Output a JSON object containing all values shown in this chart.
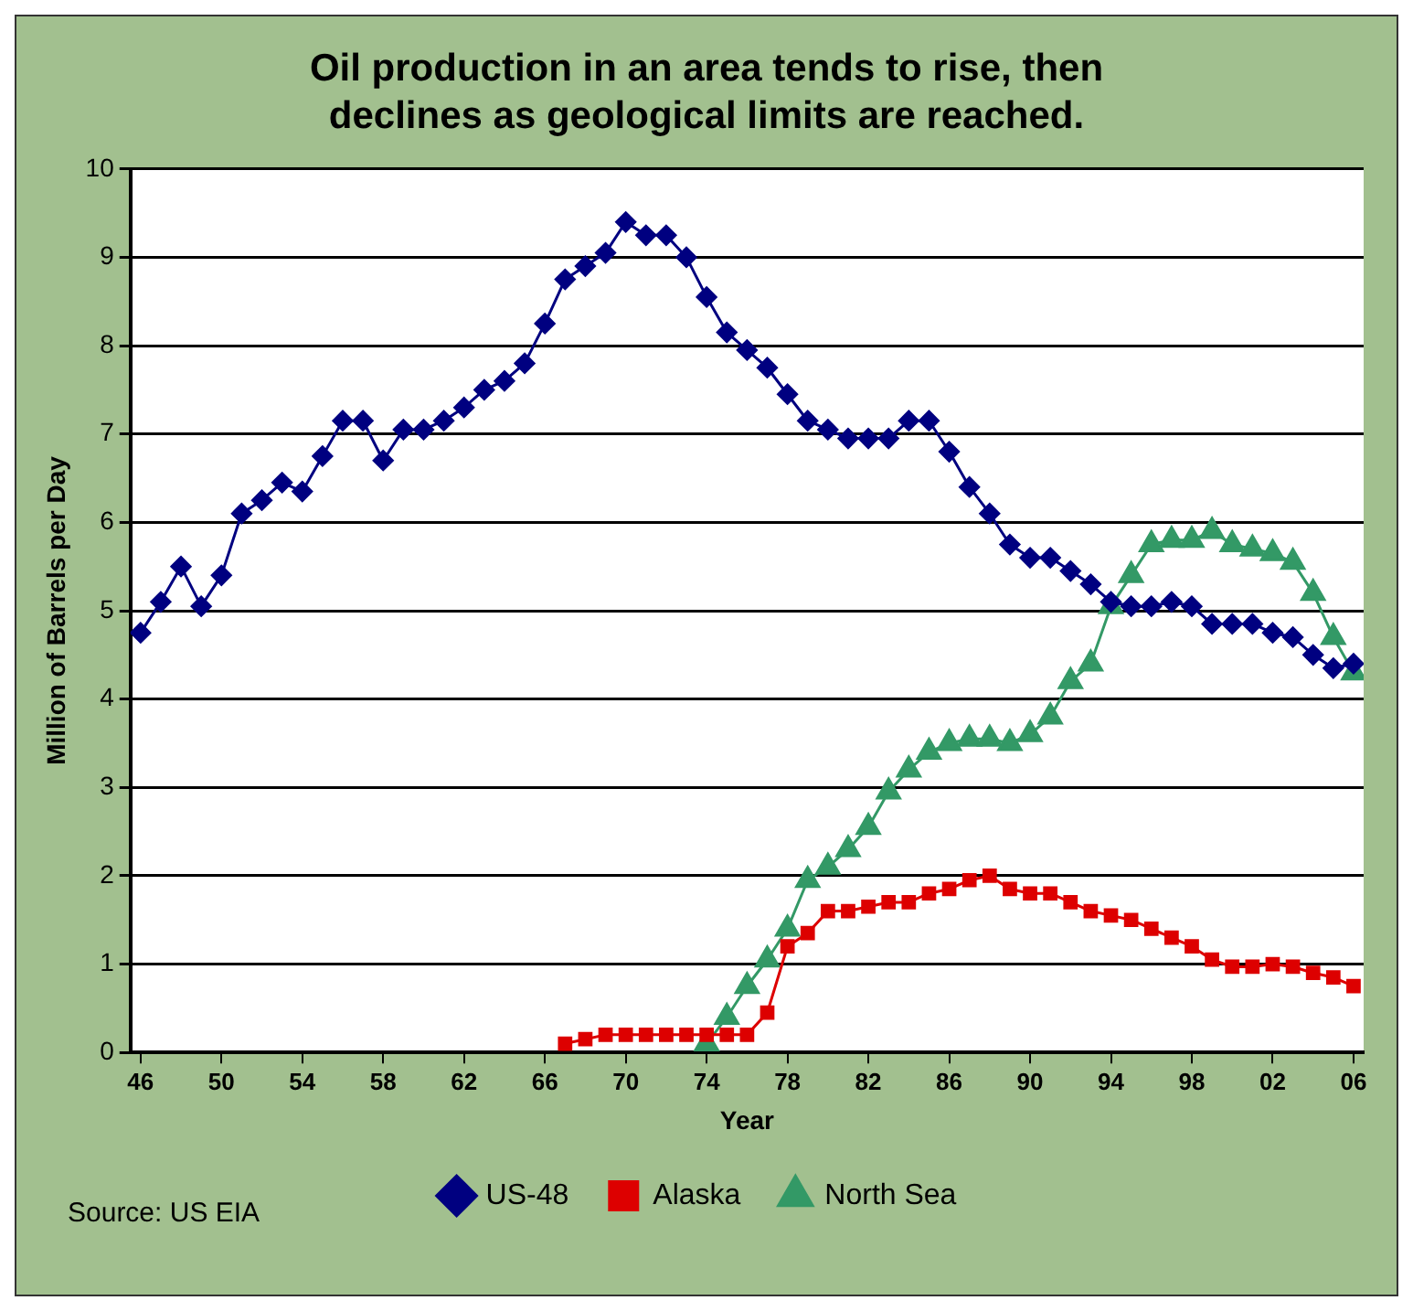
{
  "chart_data": {
    "type": "line",
    "title": "Oil production in an area tends to rise, then declines as geological limits are reached.",
    "xlabel": "Year",
    "ylabel": "Million of Barrels per Day",
    "annotations": [
      "Source: US EIA"
    ],
    "x": [
      1946,
      1947,
      1948,
      1949,
      1950,
      1951,
      1952,
      1953,
      1954,
      1955,
      1956,
      1957,
      1958,
      1959,
      1960,
      1961,
      1962,
      1963,
      1964,
      1965,
      1966,
      1967,
      1968,
      1969,
      1970,
      1971,
      1972,
      1973,
      1974,
      1975,
      1976,
      1977,
      1978,
      1979,
      1980,
      1981,
      1982,
      1983,
      1984,
      1985,
      1986,
      1987,
      1988,
      1989,
      1990,
      1991,
      1992,
      1993,
      1994,
      1995,
      1996,
      1997,
      1998,
      1999,
      2000,
      2001,
      2002,
      2003,
      2004,
      2005,
      2006
    ],
    "series": [
      {
        "name": "US-48",
        "color": "#000080",
        "marker": "diamond",
        "values": [
          4.75,
          5.1,
          5.5,
          5.05,
          5.4,
          6.1,
          6.25,
          6.45,
          6.35,
          6.75,
          7.15,
          7.15,
          6.7,
          7.05,
          7.05,
          7.15,
          7.3,
          7.5,
          7.6,
          7.8,
          8.25,
          8.75,
          8.9,
          9.05,
          9.4,
          9.25,
          9.25,
          9.0,
          8.55,
          8.15,
          7.95,
          7.75,
          7.45,
          7.15,
          7.05,
          6.95,
          6.95,
          6.95,
          7.15,
          7.15,
          6.8,
          6.4,
          6.1,
          5.75,
          5.6,
          5.6,
          5.45,
          5.3,
          5.1,
          5.05,
          5.05,
          5.1,
          5.05,
          4.85,
          4.85,
          4.85,
          4.75,
          4.7,
          4.5,
          4.35,
          4.4
        ]
      },
      {
        "name": "Alaska",
        "color": "#dd0000",
        "marker": "square",
        "values": [
          null,
          null,
          null,
          null,
          null,
          null,
          null,
          null,
          null,
          null,
          null,
          null,
          null,
          null,
          null,
          null,
          null,
          null,
          null,
          null,
          null,
          0.1,
          0.15,
          0.2,
          0.2,
          0.2,
          0.2,
          0.2,
          0.2,
          0.2,
          0.2,
          0.45,
          1.2,
          1.35,
          1.6,
          1.6,
          1.65,
          1.7,
          1.7,
          1.8,
          1.85,
          1.95,
          2.0,
          1.85,
          1.8,
          1.8,
          1.7,
          1.6,
          1.55,
          1.5,
          1.4,
          1.3,
          1.2,
          1.05,
          0.97,
          0.97,
          1.0,
          0.97,
          0.9,
          0.85,
          0.75
        ]
      },
      {
        "name": "North Sea",
        "color": "#339966",
        "marker": "triangle",
        "values": [
          null,
          null,
          null,
          null,
          null,
          null,
          null,
          null,
          null,
          null,
          null,
          null,
          null,
          null,
          null,
          null,
          null,
          null,
          null,
          null,
          null,
          null,
          null,
          null,
          null,
          null,
          null,
          null,
          0.1,
          0.4,
          0.75,
          1.05,
          1.4,
          1.95,
          2.1,
          2.3,
          2.55,
          2.95,
          3.2,
          3.4,
          3.5,
          3.55,
          3.55,
          3.5,
          3.6,
          3.8,
          4.2,
          4.4,
          5.05,
          5.4,
          5.75,
          5.8,
          5.8,
          5.9,
          5.75,
          5.7,
          5.65,
          5.55,
          5.2,
          4.7,
          4.3
        ]
      }
    ],
    "xlim": [
      1945.5,
      2006.5
    ],
    "xticks": [
      {
        "value": 1946,
        "label": "46"
      },
      {
        "value": 1950,
        "label": "50"
      },
      {
        "value": 1954,
        "label": "54"
      },
      {
        "value": 1958,
        "label": "58"
      },
      {
        "value": 1962,
        "label": "62"
      },
      {
        "value": 1966,
        "label": "66"
      },
      {
        "value": 1970,
        "label": "70"
      },
      {
        "value": 1974,
        "label": "74"
      },
      {
        "value": 1978,
        "label": "78"
      },
      {
        "value": 1982,
        "label": "82"
      },
      {
        "value": 1986,
        "label": "86"
      },
      {
        "value": 1990,
        "label": "90"
      },
      {
        "value": 1994,
        "label": "94"
      },
      {
        "value": 1998,
        "label": "98"
      },
      {
        "value": 2002,
        "label": "02"
      },
      {
        "value": 2006,
        "label": "06"
      }
    ],
    "ylim": [
      0,
      10
    ],
    "yticks": [
      0,
      1,
      2,
      3,
      4,
      5,
      6,
      7,
      8,
      9,
      10
    ],
    "grid": "y",
    "legend": "bottom",
    "line_style": "solid"
  }
}
